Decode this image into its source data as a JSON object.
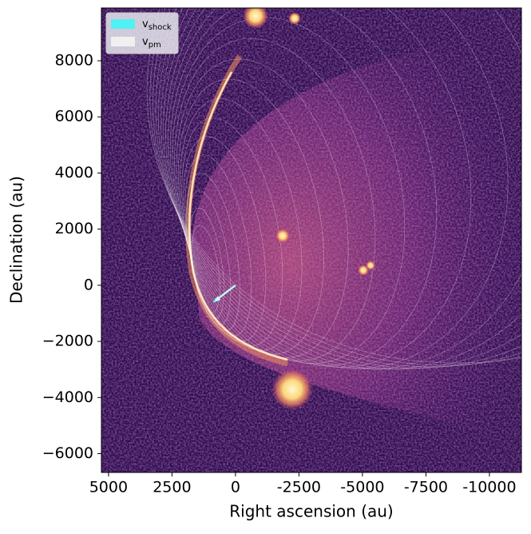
{
  "chart_data": {
    "type": "image",
    "xlabel": "Right ascension (au)",
    "ylabel": "Declination (au)",
    "xlim": [
      5280,
      -11260
    ],
    "ylim": [
      -6670,
      9880
    ],
    "xticks": [
      5000,
      2500,
      0,
      -2500,
      -5000,
      -7500,
      -10000
    ],
    "yticks": [
      {
        "value": -6000,
        "label": "−6000"
      },
      {
        "value": -4000,
        "label": "−4000"
      },
      {
        "value": -2000,
        "label": "−2000"
      },
      0,
      2000,
      4000,
      6000,
      8000
    ],
    "legend": "upper left",
    "series": [
      {
        "name": "v",
        "subscript": "shock",
        "color": "#4ff2f2",
        "x": [
          0,
          870
        ],
        "y": [
          0,
          -600
        ]
      },
      {
        "name": "v",
        "subscript": "pm",
        "color": "#f0f0f0",
        "x": [
          0,
          800
        ],
        "y": [
          0,
          -560
        ]
      }
    ]
  }
}
